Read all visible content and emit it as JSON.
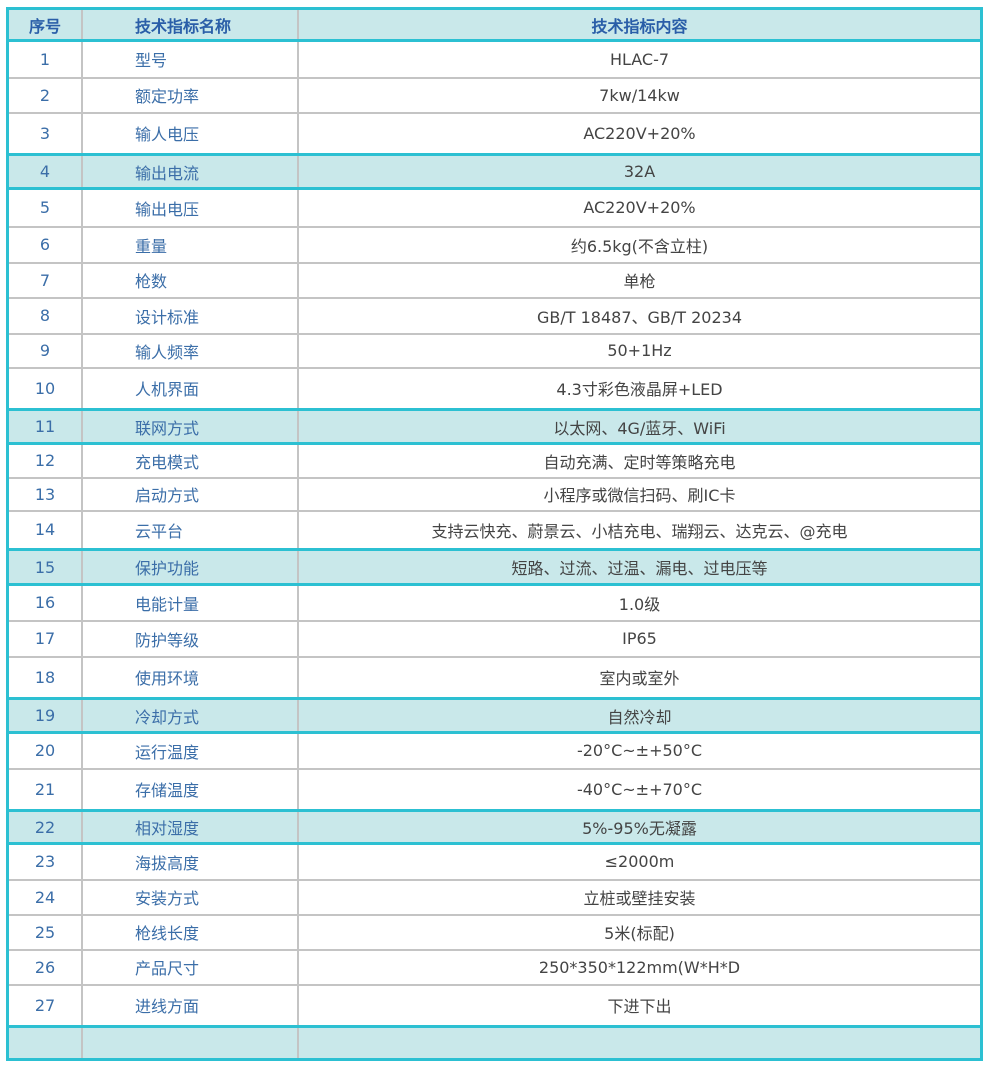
{
  "header": {
    "col1": "序号",
    "col2": "技术指标名称",
    "col3": "技术指标内容"
  },
  "highlight_color": "#c9e8ea",
  "border_accent": "#2cc0d2",
  "rows": [
    {
      "no": "1",
      "name": "型号",
      "value": "HLAC-7",
      "h": 37
    },
    {
      "no": "2",
      "name": "额定功率",
      "value": "7kw/14kw",
      "h": 35
    },
    {
      "no": "3",
      "name": "输人电压",
      "value": "AC220V+20%",
      "h": 42
    },
    {
      "no": "4",
      "name": "输出电流",
      "value": "32A",
      "h": 34,
      "highlight": true
    },
    {
      "no": "5",
      "name": "输出电压",
      "value": "AC220V+20%",
      "h": 38
    },
    {
      "no": "6",
      "name": "重量",
      "value": "约6.5kg(不含立柱)",
      "h": 36
    },
    {
      "no": "7",
      "name": "枪数",
      "value": "单枪",
      "h": 35
    },
    {
      "no": "8",
      "name": "设计标准",
      "value": "GB/T 18487、GB/T 20234",
      "h": 36
    },
    {
      "no": "9",
      "name": "输人频率",
      "value": "50+1Hz",
      "h": 34
    },
    {
      "no": "10",
      "name": "人机界面",
      "value": "4.3寸彩色液晶屏+LED",
      "h": 42
    },
    {
      "no": "11",
      "name": "联网方式",
      "value": "以太网、4G/蓝牙、WiFi",
      "h": 34,
      "highlight": true
    },
    {
      "no": "12",
      "name": "充电模式",
      "value": "自动充满、定时等策略充电",
      "h": 34
    },
    {
      "no": "13",
      "name": "启动方式",
      "value": "小程序或微信扫码、刷IC卡",
      "h": 33
    },
    {
      "no": "14",
      "name": "云平台",
      "value": "支持云快充、蔚景云、小桔充电、瑞翔云、达克云、@充电",
      "h": 39
    },
    {
      "no": "15",
      "name": "保护功能",
      "value": "短路、过流、过温、漏电、过电压等",
      "h": 35,
      "highlight": true
    },
    {
      "no": "16",
      "name": "电能计量",
      "value": "1.0级",
      "h": 36
    },
    {
      "no": "17",
      "name": "防护等级",
      "value": "IP65",
      "h": 36
    },
    {
      "no": "18",
      "name": "使用环境",
      "value": "室内或室外",
      "h": 42
    },
    {
      "no": "19",
      "name": "冷却方式",
      "value": "自然冷却",
      "h": 34,
      "highlight": true
    },
    {
      "no": "20",
      "name": "运行温度",
      "value": "-20°C~±+50°C",
      "h": 36
    },
    {
      "no": "21",
      "name": "存储温度",
      "value": "-40°C~±+70°C",
      "h": 42
    },
    {
      "no": "22",
      "name": "相对湿度",
      "value": "5%-95%无凝露",
      "h": 33,
      "highlight": true
    },
    {
      "no": "23",
      "name": "海拔高度",
      "value": "≤2000m",
      "h": 36
    },
    {
      "no": "24",
      "name": "安装方式",
      "value": "立桩或壁挂安装",
      "h": 35
    },
    {
      "no": "25",
      "name": "枪线长度",
      "value": "5米(标配)",
      "h": 35
    },
    {
      "no": "26",
      "name": "产品尺寸",
      "value": "250*350*122mm(W*H*D",
      "h": 35
    },
    {
      "no": "27",
      "name": "进线方面",
      "value": "下进下出",
      "h": 42
    }
  ]
}
